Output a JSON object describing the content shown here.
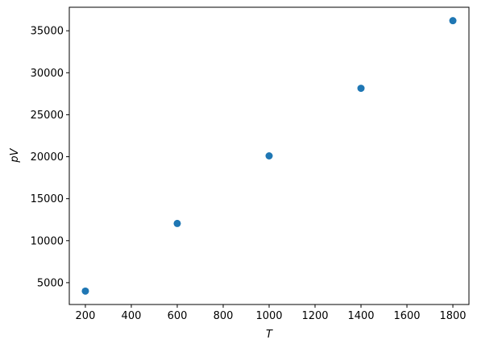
{
  "chart_data": {
    "type": "scatter",
    "xlabel": "T",
    "ylabel": "pV",
    "xlim": [
      130,
      1870
    ],
    "ylim": [
      2400,
      37800
    ],
    "xticks": [
      200,
      400,
      600,
      800,
      1000,
      1200,
      1400,
      1600,
      1800
    ],
    "yticks": [
      5000,
      10000,
      15000,
      20000,
      25000,
      30000,
      35000
    ],
    "grid": false,
    "series": [
      {
        "x": [
          200,
          600,
          1000,
          1400,
          1800
        ],
        "y": [
          4000,
          12050,
          20100,
          28150,
          36200
        ],
        "color": "#1f77b4"
      }
    ]
  }
}
